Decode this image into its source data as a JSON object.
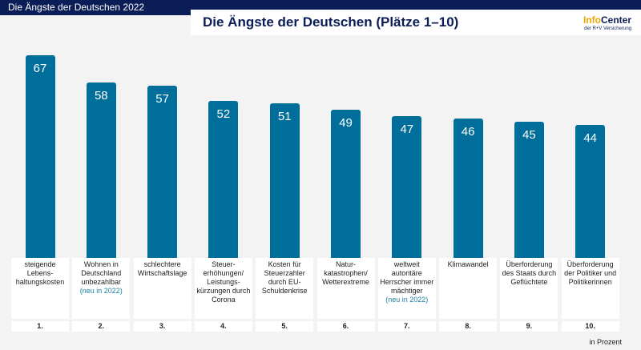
{
  "header": {
    "title": "Die Ängste der Deutschen 2022"
  },
  "chart_title": "Die Ängste der Deutschen (Plätze 1–10)",
  "logo": {
    "part1": "Info",
    "part2": "Center",
    "sub": "der R+V Versicherung"
  },
  "unit": "in Prozent",
  "colors": {
    "bar": "#006e9a",
    "navy": "#0b1d56",
    "logo_orange": "#f0a500"
  },
  "chart_data": {
    "type": "bar",
    "title": "Die Ängste der Deutschen (Plätze 1–10)",
    "ylabel": "in Prozent",
    "ylim": [
      0,
      67
    ],
    "categories": [
      {
        "label": "steigende Lebens-haltungskosten",
        "note": "",
        "rank": "1."
      },
      {
        "label": "Wohnen in Deutschland unbezahlbar",
        "note": "(neu in 2022)",
        "rank": "2."
      },
      {
        "label": "schlechtere Wirtschaftslage",
        "note": "",
        "rank": "3."
      },
      {
        "label": "Steuer-erhöhungen/ Leistungs-kürzungen durch Corona",
        "note": "",
        "rank": "4."
      },
      {
        "label": "Kosten für Steuerzahler durch EU-Schuldenkrise",
        "note": "",
        "rank": "5."
      },
      {
        "label": "Natur-katastrophen/ Wetterextreme",
        "note": "",
        "rank": "6."
      },
      {
        "label": "weltweit autoritäre Herrscher immer mächtiger",
        "note": "(neu in 2022)",
        "rank": "7."
      },
      {
        "label": "Klimawandel",
        "note": "",
        "rank": "8."
      },
      {
        "label": "Überforderung des Staats durch Geflüchtete",
        "note": "",
        "rank": "9."
      },
      {
        "label": "Überforderung der Politiker und Politikerinnen",
        "note": "",
        "rank": "10."
      }
    ],
    "values": [
      67,
      58,
      57,
      52,
      51,
      49,
      47,
      46,
      45,
      44
    ]
  }
}
